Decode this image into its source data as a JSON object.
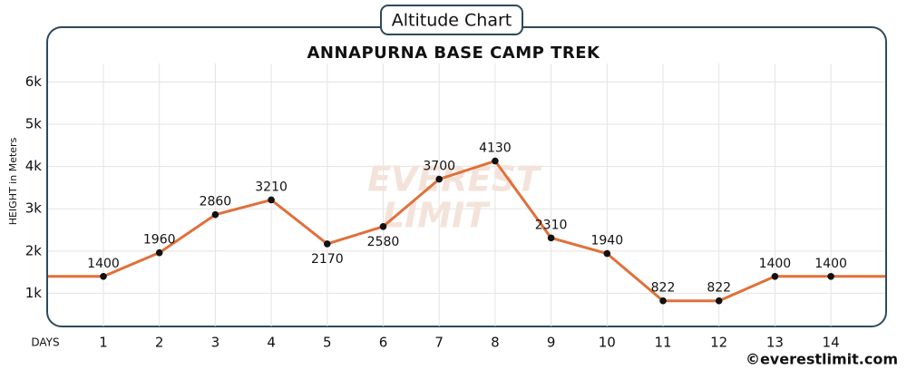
{
  "badge": "Altitude Chart",
  "footer": "©everestlimit.com",
  "watermark": [
    "EVEREST",
    "LIMIT"
  ],
  "chart_data": {
    "type": "line",
    "title": "ANNAPURNA BASE CAMP TREK",
    "x_label": "DAYS",
    "y_label": "HEIGHT in Meters",
    "x": [
      1,
      2,
      3,
      4,
      5,
      6,
      7,
      8,
      9,
      10,
      11,
      12,
      13,
      14
    ],
    "series": [
      {
        "name": "Altitude",
        "color": "#e0703a",
        "values": [
          1400,
          1960,
          2860,
          3210,
          2170,
          2580,
          3700,
          4130,
          2310,
          1940,
          822,
          822,
          1400,
          1400
        ]
      }
    ],
    "ylim": [
      200,
      7000
    ],
    "yticks": [
      {
        "value": 1000,
        "label": "1k"
      },
      {
        "value": 2000,
        "label": "2k"
      },
      {
        "value": 3000,
        "label": "3k"
      },
      {
        "value": 4000,
        "label": "4k"
      },
      {
        "value": 5000,
        "label": "5k"
      },
      {
        "value": 6000,
        "label": "6k"
      }
    ],
    "grid": true
  }
}
